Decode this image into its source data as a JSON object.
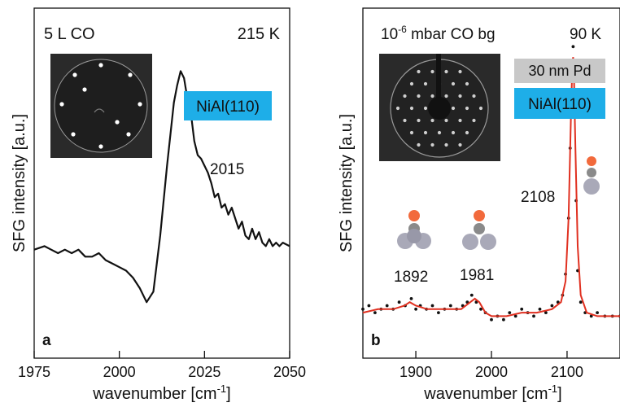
{
  "chart_data": [
    {
      "type": "line",
      "panel_label": "a",
      "condition": "5 L CO",
      "temperature": "215 K",
      "substrate_label": "NiAl(110)",
      "peak_label": "2015",
      "xlabel": "wavenumber [cm",
      "xlabel_sup": "-1",
      "xlabel_end": "]",
      "ylabel": "SFG intensity [a.u.]",
      "xlim": [
        1975,
        2050
      ],
      "ylim": [
        0,
        1
      ],
      "xticks": [
        1975,
        2000,
        2025,
        2050
      ],
      "grid": false,
      "legend": "none",
      "colors": {
        "line": "#111111",
        "substrate": "#1eaee8",
        "inset_bg": "#2a2a2a"
      },
      "series": [
        {
          "x": [
            1975,
            1978,
            1980,
            1982,
            1984,
            1986,
            1988,
            1990,
            1992,
            1994,
            1996,
            1998,
            2000,
            2002,
            2004,
            2006,
            2008,
            2010,
            2012,
            2014,
            2016,
            2017,
            2018,
            2019,
            2020,
            2021,
            2022,
            2023,
            2024,
            2025,
            2026,
            2027,
            2028,
            2029,
            2030,
            2031,
            2032,
            2033,
            2034,
            2035,
            2036,
            2037,
            2038,
            2039,
            2040,
            2041,
            2042,
            2043,
            2044,
            2045,
            2046,
            2047,
            2048,
            2050
          ],
          "y": [
            0.31,
            0.32,
            0.31,
            0.3,
            0.31,
            0.3,
            0.31,
            0.29,
            0.29,
            0.3,
            0.28,
            0.27,
            0.26,
            0.25,
            0.23,
            0.2,
            0.16,
            0.19,
            0.35,
            0.55,
            0.73,
            0.78,
            0.82,
            0.8,
            0.74,
            0.7,
            0.62,
            0.58,
            0.57,
            0.55,
            0.53,
            0.5,
            0.46,
            0.47,
            0.43,
            0.44,
            0.41,
            0.43,
            0.4,
            0.37,
            0.39,
            0.35,
            0.34,
            0.37,
            0.34,
            0.36,
            0.33,
            0.32,
            0.34,
            0.32,
            0.33,
            0.32,
            0.33,
            0.32
          ]
        }
      ]
    },
    {
      "type": "scatter",
      "panel_label": "b",
      "condition_base": "10",
      "condition_sup": "-6",
      "condition_rest": " mbar CO bg",
      "temperature": "90 K",
      "film_label": "30 nm Pd",
      "substrate_label": "NiAl(110)",
      "peak_labels": [
        "1892",
        "1981",
        "2108"
      ],
      "xlabel": "wavenumber [cm",
      "xlabel_sup": "-1",
      "xlabel_end": "]",
      "ylabel": "SFG intensity [a.u.]",
      "xlim": [
        1830,
        2170
      ],
      "ylim": [
        0,
        1
      ],
      "xticks": [
        1900,
        2000,
        2100
      ],
      "grid": false,
      "legend": "none",
      "colors": {
        "fit": "#e03020",
        "points": "#111111",
        "film": "#c8c8c8",
        "substrate": "#1eaee8",
        "oxygen": "#f26a3c",
        "carbon": "#8a8a8a",
        "metal": "#a9a9b8"
      },
      "series": [
        {
          "name": "",
          "x": [
            1830,
            1838,
            1846,
            1854,
            1862,
            1870,
            1878,
            1886,
            1894,
            1900,
            1906,
            1914,
            1922,
            1930,
            1938,
            1946,
            1954,
            1962,
            1968,
            1974,
            1980,
            1986,
            1992,
            2000,
            2008,
            2016,
            2024,
            2032,
            2040,
            2048,
            2056,
            2064,
            2072,
            2080,
            2088,
            2094,
            2098,
            2102,
            2104,
            2106,
            2108,
            2110,
            2112,
            2114,
            2118,
            2124,
            2132,
            2140,
            2150,
            2160,
            2170
          ],
          "y": [
            0.14,
            0.15,
            0.13,
            0.14,
            0.15,
            0.14,
            0.16,
            0.15,
            0.17,
            0.14,
            0.15,
            0.14,
            0.15,
            0.13,
            0.14,
            0.15,
            0.14,
            0.15,
            0.16,
            0.18,
            0.16,
            0.14,
            0.13,
            0.11,
            0.12,
            0.11,
            0.13,
            0.12,
            0.14,
            0.13,
            0.12,
            0.14,
            0.13,
            0.15,
            0.16,
            0.18,
            0.24,
            0.4,
            0.6,
            0.8,
            0.89,
            0.72,
            0.45,
            0.25,
            0.16,
            0.13,
            0.12,
            0.13,
            0.12,
            0.12,
            0.12
          ]
        }
      ],
      "fit": {
        "x": [
          1830,
          1850,
          1870,
          1885,
          1892,
          1900,
          1915,
          1940,
          1960,
          1972,
          1978,
          1984,
          1992,
          2000,
          2020,
          2040,
          2060,
          2080,
          2092,
          2098,
          2102,
          2105,
          2107,
          2108,
          2109,
          2111,
          2114,
          2118,
          2126,
          2140,
          2170
        ],
        "y": [
          0.13,
          0.14,
          0.14,
          0.15,
          0.16,
          0.15,
          0.14,
          0.14,
          0.14,
          0.16,
          0.17,
          0.16,
          0.13,
          0.12,
          0.12,
          0.13,
          0.13,
          0.14,
          0.16,
          0.22,
          0.4,
          0.68,
          0.84,
          0.86,
          0.82,
          0.6,
          0.32,
          0.18,
          0.13,
          0.12,
          0.12
        ]
      }
    }
  ]
}
